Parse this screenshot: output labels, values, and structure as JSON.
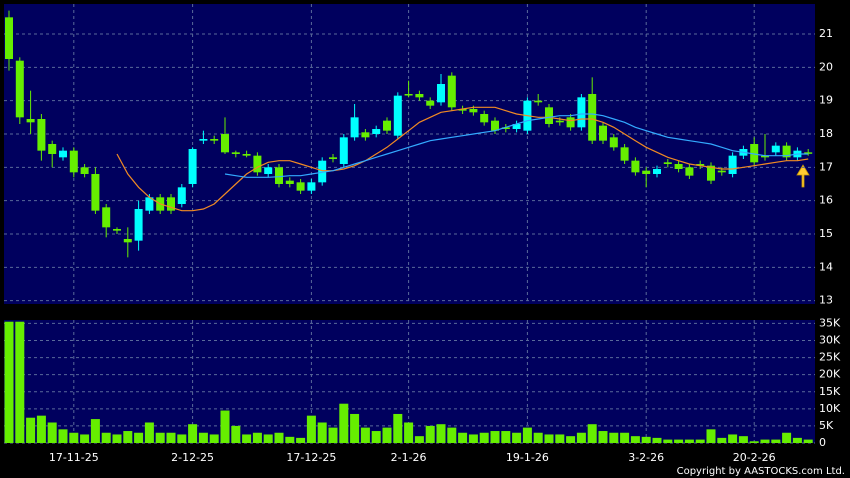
{
  "footer": "Copyright by AASTOCKS.com Ltd.",
  "chart_data": [
    {
      "type": "candlestick",
      "up_color": "#00ffff",
      "down_color": "#66ee00",
      "open": [
        21.5,
        20.2,
        18.45,
        18.45,
        17.7,
        17.3,
        17.5,
        17.0,
        16.8,
        15.8,
        15.15,
        14.85,
        14.8,
        15.7,
        16.1,
        16.1,
        15.9,
        16.5,
        17.8,
        17.85,
        18.0,
        17.45,
        17.4,
        17.35,
        16.8,
        17.0,
        16.6,
        16.55,
        16.3,
        16.55,
        17.3,
        17.1,
        17.9,
        18.05,
        18.0,
        18.4,
        17.95,
        19.2,
        19.2,
        19.0,
        18.95,
        19.75,
        18.75,
        18.75,
        18.6,
        18.4,
        18.2,
        18.15,
        18.1,
        19.0,
        18.8,
        18.4,
        18.5,
        18.2,
        19.2,
        18.25,
        17.9,
        17.6,
        17.2,
        16.9,
        16.8,
        17.15,
        17.1,
        17.0,
        17.1,
        17.05,
        16.9,
        16.8,
        17.35,
        17.7,
        17.35,
        17.45,
        17.65,
        17.3,
        17.45
      ],
      "high": [
        21.7,
        20.3,
        19.3,
        18.6,
        17.8,
        17.6,
        17.6,
        17.1,
        17.0,
        15.9,
        15.2,
        15.2,
        16.0,
        16.2,
        16.2,
        16.2,
        16.5,
        17.6,
        18.1,
        17.95,
        18.5,
        17.5,
        17.5,
        17.45,
        17.1,
        17.1,
        16.7,
        16.65,
        16.65,
        17.3,
        17.4,
        18.0,
        18.9,
        18.15,
        18.25,
        18.5,
        19.25,
        19.6,
        19.3,
        19.1,
        19.8,
        19.85,
        18.85,
        18.85,
        18.7,
        18.5,
        18.3,
        18.4,
        19.1,
        19.2,
        18.9,
        18.5,
        18.6,
        19.2,
        19.7,
        18.35,
        18.0,
        17.7,
        17.3,
        17.0,
        17.05,
        17.25,
        17.2,
        17.1,
        17.2,
        17.15,
        17.0,
        17.45,
        17.65,
        17.9,
        18.0,
        17.75,
        17.75,
        17.6,
        17.55
      ],
      "low": [
        19.9,
        18.3,
        18.0,
        17.2,
        17.0,
        17.2,
        16.7,
        16.7,
        15.6,
        14.9,
        15.0,
        14.3,
        14.5,
        15.6,
        15.6,
        15.6,
        15.8,
        16.4,
        17.7,
        17.7,
        17.4,
        17.3,
        17.3,
        16.75,
        16.7,
        16.4,
        16.4,
        16.2,
        16.2,
        16.45,
        17.15,
        17.0,
        17.8,
        17.8,
        17.9,
        18.0,
        17.85,
        19.1,
        19.0,
        18.75,
        18.85,
        18.7,
        18.6,
        18.55,
        18.25,
        18.0,
        18.05,
        18.05,
        18.0,
        18.85,
        18.2,
        18.25,
        18.1,
        18.1,
        17.7,
        17.7,
        17.5,
        17.1,
        16.75,
        16.4,
        16.7,
        17.0,
        16.85,
        16.65,
        16.95,
        16.5,
        16.75,
        16.7,
        17.25,
        17.05,
        17.2,
        17.35,
        17.2,
        17.2,
        17.35
      ],
      "close": [
        20.25,
        18.5,
        18.35,
        17.5,
        17.4,
        17.5,
        16.85,
        16.8,
        15.7,
        15.2,
        15.1,
        14.75,
        15.75,
        16.1,
        15.7,
        15.7,
        16.4,
        17.55,
        17.85,
        17.8,
        17.45,
        17.4,
        17.35,
        16.85,
        17.0,
        16.5,
        16.5,
        16.3,
        16.55,
        17.2,
        17.25,
        17.9,
        18.5,
        17.9,
        18.15,
        18.1,
        19.15,
        19.2,
        19.1,
        18.85,
        19.5,
        18.8,
        18.7,
        18.65,
        18.35,
        18.1,
        18.15,
        18.3,
        19.0,
        18.95,
        18.3,
        18.35,
        18.2,
        19.1,
        17.8,
        17.8,
        17.6,
        17.2,
        16.85,
        16.8,
        16.95,
        17.1,
        16.95,
        16.75,
        17.05,
        16.6,
        16.85,
        17.35,
        17.55,
        17.15,
        17.3,
        17.65,
        17.3,
        17.5,
        17.45
      ],
      "lines": [
        {
          "color": "#f08a24",
          "values": [
            null,
            null,
            null,
            null,
            null,
            null,
            null,
            null,
            null,
            null,
            17.4,
            16.8,
            16.4,
            16.1,
            15.9,
            15.8,
            15.7,
            15.7,
            15.75,
            15.9,
            16.2,
            16.5,
            16.8,
            17.0,
            17.15,
            17.2,
            17.2,
            17.1,
            17.0,
            16.9,
            16.9,
            16.95,
            17.05,
            17.2,
            17.4,
            17.6,
            17.85,
            18.1,
            18.35,
            18.5,
            18.65,
            18.7,
            18.75,
            18.8,
            18.8,
            18.8,
            18.7,
            18.6,
            18.55,
            18.5,
            18.5,
            18.45,
            18.4,
            18.45,
            18.45,
            18.35,
            18.2,
            18.0,
            17.8,
            17.6,
            17.45,
            17.3,
            17.2,
            17.1,
            17.05,
            17.0,
            16.95,
            16.95,
            17.0,
            17.05,
            17.1,
            17.15,
            17.2,
            17.2,
            17.25
          ]
        },
        {
          "color": "#33aaff",
          "values": [
            null,
            null,
            null,
            null,
            null,
            null,
            null,
            null,
            null,
            null,
            null,
            null,
            null,
            null,
            null,
            null,
            null,
            null,
            null,
            null,
            16.8,
            16.75,
            16.7,
            16.7,
            16.7,
            16.72,
            16.75,
            16.75,
            16.8,
            16.85,
            16.9,
            17.0,
            17.1,
            17.2,
            17.3,
            17.4,
            17.5,
            17.6,
            17.7,
            17.8,
            17.85,
            17.9,
            17.95,
            18.0,
            18.05,
            18.1,
            18.2,
            18.3,
            18.4,
            18.45,
            18.5,
            18.55,
            18.55,
            18.6,
            18.6,
            18.55,
            18.45,
            18.35,
            18.2,
            18.1,
            18.0,
            17.9,
            17.85,
            17.8,
            17.75,
            17.7,
            17.6,
            17.5,
            17.45,
            17.4,
            17.35,
            17.35,
            17.35,
            17.4,
            17.4
          ]
        }
      ],
      "ylim": [
        12.9,
        21.9
      ],
      "yticks": [
        13,
        14,
        15,
        16,
        17,
        18,
        19,
        20,
        21
      ],
      "grid": true
    },
    {
      "type": "bar",
      "color": "#66ee00",
      "categories": [
        null,
        null,
        null,
        null,
        null,
        null,
        "17-11-25",
        null,
        null,
        null,
        null,
        null,
        null,
        null,
        null,
        null,
        null,
        "2-12-25",
        null,
        null,
        null,
        null,
        null,
        null,
        null,
        null,
        null,
        null,
        "17-12-25",
        null,
        null,
        null,
        null,
        null,
        null,
        null,
        null,
        "2-1-26",
        null,
        null,
        null,
        null,
        null,
        null,
        null,
        null,
        null,
        null,
        "19-1-26",
        null,
        null,
        null,
        null,
        null,
        null,
        null,
        null,
        null,
        null,
        "3-2-26",
        null,
        null,
        null,
        null,
        null,
        null,
        null,
        null,
        null,
        "20-2-26",
        null,
        null,
        null,
        null,
        null
      ],
      "values": [
        35500,
        35500,
        7400,
        8000,
        6000,
        4000,
        3000,
        2500,
        7000,
        3000,
        2500,
        3500,
        3000,
        6000,
        3000,
        3000,
        2500,
        5500,
        3000,
        2500,
        9500,
        5000,
        2500,
        3000,
        2500,
        3000,
        1800,
        1500,
        8000,
        6000,
        4500,
        11500,
        8500,
        4500,
        3500,
        4500,
        8500,
        6000,
        2000,
        5000,
        5500,
        4500,
        3000,
        2500,
        3000,
        3500,
        3500,
        3000,
        4500,
        3000,
        2500,
        2500,
        2000,
        3000,
        5500,
        3500,
        3000,
        3000,
        2000,
        1800,
        1500,
        1000,
        1000,
        1000,
        1000,
        4000,
        1500,
        2500,
        2000,
        500,
        1000,
        1000,
        3000,
        1500,
        1000
      ],
      "ylim": [
        0,
        36000
      ],
      "yticks": [
        0,
        {
          "value": 5000,
          "label": "5K"
        },
        {
          "value": 10000,
          "label": "10K"
        },
        {
          "value": 15000,
          "label": "15K"
        },
        {
          "value": 20000,
          "label": "20K"
        },
        {
          "value": 25000,
          "label": "25K"
        },
        {
          "value": 30000,
          "label": "30K"
        },
        {
          "value": 35000,
          "label": "35K"
        }
      ],
      "grid": true
    }
  ]
}
